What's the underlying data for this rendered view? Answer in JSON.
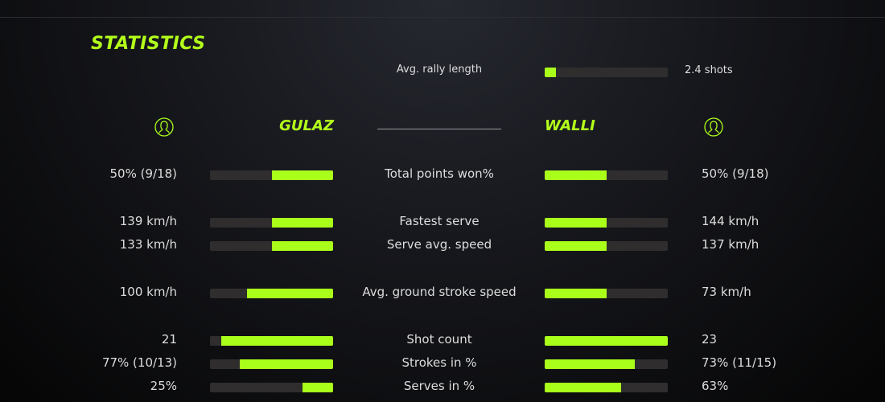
{
  "title": "STATISTICS",
  "accent": "#aaff1a",
  "rally": {
    "label": "Avg. rally length",
    "value": "2.4 shots",
    "fill": 0.09
  },
  "players": {
    "left": {
      "name": "GULAZ",
      "icon": "user-icon"
    },
    "right": {
      "name": "WALLI",
      "icon": "user-icon"
    }
  },
  "rows": [
    {
      "label": "Total points won%",
      "left": "50% (9/18)",
      "right": "50% (9/18)",
      "left_fill": 0.5,
      "right_fill": 0.5
    },
    {
      "label": "Fastest serve",
      "left": "139 km/h",
      "right": "144 km/h",
      "left_fill": 0.5,
      "right_fill": 0.5
    },
    {
      "label": "Serve avg. speed",
      "left": "133 km/h",
      "right": "137 km/h",
      "left_fill": 0.5,
      "right_fill": 0.5
    },
    {
      "label": "Avg. ground stroke speed",
      "left": "100 km/h",
      "right": "73 km/h",
      "left_fill": 0.7,
      "right_fill": 0.5
    },
    {
      "label": "Shot count",
      "left": "21",
      "right": "23",
      "left_fill": 0.91,
      "right_fill": 1.0
    },
    {
      "label": "Strokes in %",
      "left": "77% (10/13)",
      "right": "73% (11/15)",
      "left_fill": 0.76,
      "right_fill": 0.73
    },
    {
      "label": "Serves in %",
      "left": "25%",
      "right": "63%",
      "left_fill": 0.25,
      "right_fill": 0.62
    }
  ]
}
